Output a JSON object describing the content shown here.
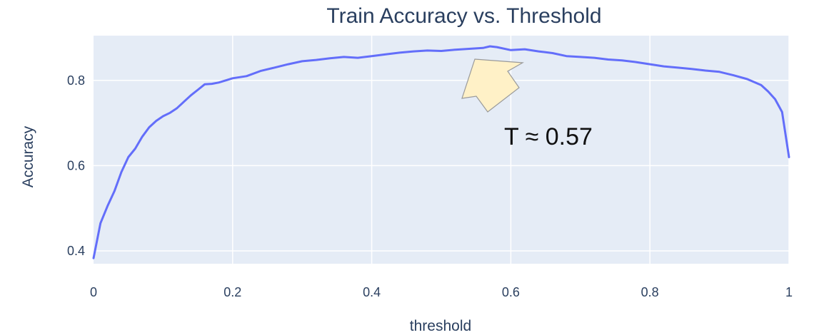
{
  "chart_data": {
    "type": "line",
    "title": "Train Accuracy vs. Threshold",
    "xlabel": "threshold",
    "ylabel": "Accuracy",
    "xlim": [
      0,
      1
    ],
    "ylim": [
      0.37,
      0.905
    ],
    "xticks": [
      0,
      0.2,
      0.4,
      0.6,
      0.8,
      1
    ],
    "xtick_labels": [
      "0",
      "0.2",
      "0.4",
      "0.6",
      "0.8",
      "1"
    ],
    "yticks": [
      0.4,
      0.6,
      0.8
    ],
    "ytick_labels": [
      "0.4",
      "0.6",
      "0.8"
    ],
    "grid": true,
    "annotations": [
      {
        "text": "T ≈ 0.57",
        "x": 0.57,
        "y": 0.878
      }
    ],
    "series": [
      {
        "color": "#636efa",
        "x": [
          0,
          0.01,
          0.02,
          0.03,
          0.04,
          0.05,
          0.06,
          0.07,
          0.08,
          0.09,
          0.1,
          0.11,
          0.12,
          0.13,
          0.14,
          0.15,
          0.16,
          0.17,
          0.18,
          0.19,
          0.2,
          0.22,
          0.24,
          0.26,
          0.28,
          0.3,
          0.32,
          0.34,
          0.36,
          0.38,
          0.4,
          0.42,
          0.44,
          0.46,
          0.48,
          0.5,
          0.52,
          0.54,
          0.56,
          0.57,
          0.58,
          0.6,
          0.62,
          0.64,
          0.66,
          0.68,
          0.7,
          0.72,
          0.74,
          0.76,
          0.78,
          0.8,
          0.82,
          0.84,
          0.86,
          0.88,
          0.9,
          0.92,
          0.94,
          0.96,
          0.97,
          0.98,
          0.99,
          1.0
        ],
        "y": [
          0.383,
          0.465,
          0.505,
          0.54,
          0.585,
          0.62,
          0.64,
          0.668,
          0.69,
          0.705,
          0.716,
          0.724,
          0.735,
          0.75,
          0.765,
          0.778,
          0.791,
          0.792,
          0.795,
          0.8,
          0.805,
          0.81,
          0.822,
          0.83,
          0.838,
          0.845,
          0.848,
          0.852,
          0.855,
          0.853,
          0.857,
          0.861,
          0.865,
          0.868,
          0.87,
          0.869,
          0.872,
          0.874,
          0.876,
          0.88,
          0.878,
          0.871,
          0.873,
          0.868,
          0.864,
          0.857,
          0.855,
          0.853,
          0.849,
          0.847,
          0.843,
          0.838,
          0.833,
          0.83,
          0.827,
          0.823,
          0.82,
          0.812,
          0.803,
          0.789,
          0.774,
          0.756,
          0.726,
          0.62
        ]
      }
    ]
  }
}
